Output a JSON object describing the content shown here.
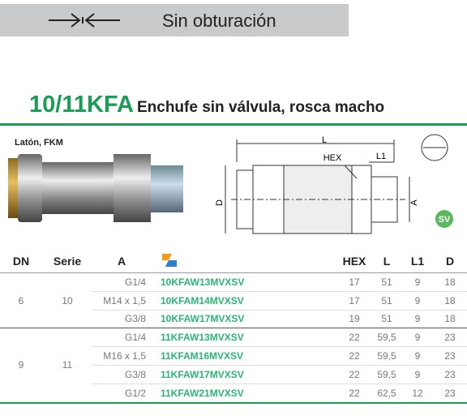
{
  "banner": {
    "text": "Sin obturación"
  },
  "title": {
    "code": "10/11KFA",
    "text": "Enchufe sin válvula, rosca macho"
  },
  "material": "Latón, FKM",
  "drawing": {
    "L": "L",
    "HEX": "HEX",
    "L1": "L1",
    "D": "D",
    "A": "A",
    "badge": "SV"
  },
  "table": {
    "columns": [
      "DN",
      "Serie",
      "A",
      "HEX",
      "L",
      "L1",
      "D"
    ],
    "groups": [
      {
        "dn": "6",
        "serie": "10",
        "rows": [
          [
            "G1/4",
            "10KFAW13MVXSV",
            "17",
            "51",
            "9",
            "18"
          ],
          [
            "M14 x 1,5",
            "10KFAM14MVXSV",
            "17",
            "51",
            "9",
            "18"
          ],
          [
            "G3/8",
            "10KFAW17MVXSV",
            "19",
            "51",
            "9",
            "18"
          ]
        ]
      },
      {
        "dn": "9",
        "serie": "11",
        "rows": [
          [
            "G1/4",
            "11KFAW13MVXSV",
            "22",
            "59,5",
            "9",
            "23"
          ],
          [
            "M16 x 1,5",
            "11KFAM16MVXSV",
            "22",
            "59,5",
            "9",
            "23"
          ],
          [
            "G3/8",
            "11KFAW17MVXSV",
            "22",
            "59,5",
            "9",
            "23"
          ],
          [
            "G1/2",
            "11KFAW21MVXSV",
            "22",
            "62,5",
            "12",
            "23"
          ]
        ]
      }
    ]
  }
}
